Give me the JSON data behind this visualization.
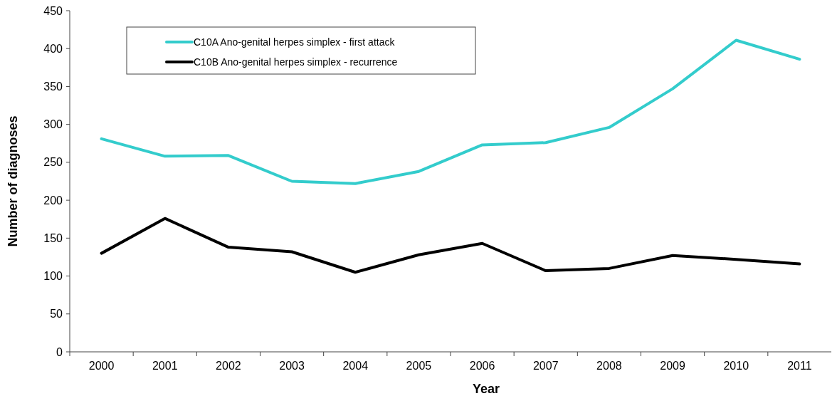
{
  "chart_data": {
    "type": "line",
    "xlabel": "Year",
    "ylabel": "Number of diagnoses",
    "categories": [
      "2000",
      "2001",
      "2002",
      "2003",
      "2004",
      "2005",
      "2006",
      "2007",
      "2008",
      "2009",
      "2010",
      "2011"
    ],
    "series": [
      {
        "name": "C10A Ano-genital herpes simplex - first attack",
        "color": "#33cccc",
        "values": [
          281,
          258,
          259,
          225,
          222,
          238,
          273,
          276,
          296,
          347,
          411,
          386
        ]
      },
      {
        "name": "C10B Ano-genital herpes simplex - recurrence",
        "color": "#000000",
        "values": [
          130,
          176,
          138,
          132,
          105,
          128,
          143,
          107,
          110,
          127,
          122,
          116
        ]
      }
    ],
    "ylim": [
      0,
      450
    ],
    "yticks": [
      0,
      50,
      100,
      150,
      200,
      250,
      300,
      350,
      400,
      450
    ],
    "grid": false,
    "legend": "top left",
    "marker": "none",
    "line_style": "solid"
  }
}
